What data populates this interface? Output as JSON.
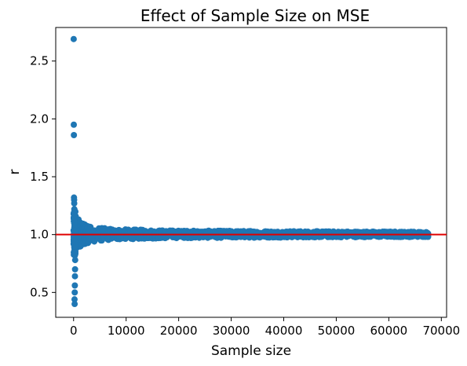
{
  "chart_data": {
    "type": "scatter",
    "title": "Effect of Sample Size on MSE",
    "xlabel": "Sample size",
    "ylabel": "r",
    "xlim": [
      -3400,
      71000
    ],
    "ylim": [
      0.285,
      2.79
    ],
    "xticks": [
      0,
      10000,
      20000,
      30000,
      40000,
      50000,
      60000,
      70000
    ],
    "yticks": [
      0.5,
      1.0,
      1.5,
      2.0,
      2.5
    ],
    "ytick_labels": [
      "0.5",
      "1.0",
      "1.5",
      "2.0",
      "2.5"
    ],
    "grid": false,
    "legend": "none",
    "point_color": "#1f77b4",
    "reference_line": {
      "y": 1.0,
      "color": "#e00000",
      "orientation": "horizontal"
    },
    "n_max": 67500,
    "outliers": [
      {
        "x": 20,
        "y": 2.69
      },
      {
        "x": 40,
        "y": 1.95
      },
      {
        "x": 60,
        "y": 1.86
      },
      {
        "x": 80,
        "y": 1.32
      },
      {
        "x": 100,
        "y": 1.3
      },
      {
        "x": 120,
        "y": 1.27
      },
      {
        "x": 140,
        "y": 1.22
      },
      {
        "x": 160,
        "y": 1.18
      },
      {
        "x": 180,
        "y": 0.44
      },
      {
        "x": 200,
        "y": 0.4
      },
      {
        "x": 220,
        "y": 0.5
      },
      {
        "x": 240,
        "y": 0.56
      },
      {
        "x": 260,
        "y": 0.64
      },
      {
        "x": 280,
        "y": 0.7
      },
      {
        "x": 300,
        "y": 0.78
      },
      {
        "x": 320,
        "y": 0.84
      }
    ],
    "band": [
      {
        "x": 600,
        "y_min": 0.85,
        "y_max": 1.16
      },
      {
        "x": 1500,
        "y_min": 0.91,
        "y_max": 1.1
      },
      {
        "x": 3000,
        "y_min": 0.93,
        "y_max": 1.07
      },
      {
        "x": 6000,
        "y_min": 0.95,
        "y_max": 1.055
      },
      {
        "x": 10000,
        "y_min": 0.96,
        "y_max": 1.045
      },
      {
        "x": 20000,
        "y_min": 0.97,
        "y_max": 1.035
      },
      {
        "x": 40000,
        "y_min": 0.975,
        "y_max": 1.03
      },
      {
        "x": 67500,
        "y_min": 0.98,
        "y_max": 1.025
      }
    ]
  }
}
